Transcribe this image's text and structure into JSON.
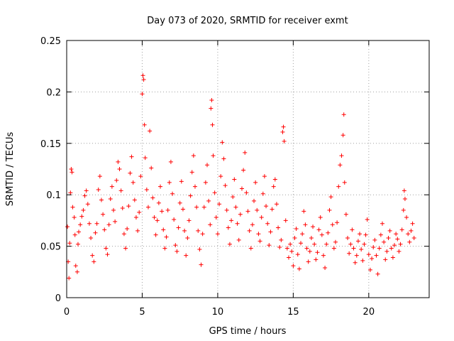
{
  "chart_data": {
    "type": "scatter",
    "title": "Day 073 of 2020, SRMTID for receiver exmt",
    "xlabel": "GPS time / hours",
    "ylabel": "SRMTID / TECUs",
    "xlim": [
      0,
      24
    ],
    "ylim": [
      0,
      0.25
    ],
    "xticks": [
      0,
      5,
      10,
      15,
      20
    ],
    "yticks": [
      0,
      0.05,
      0.1,
      0.15,
      0.2,
      0.25
    ],
    "xtick_labels": [
      "0",
      "5",
      "10",
      "15",
      "20"
    ],
    "ytick_labels": [
      "0",
      "0.05",
      "0.1",
      "0.15",
      "0.2",
      "0.25"
    ],
    "grid": true,
    "marker": "+",
    "series": [
      {
        "name": "SRMTID",
        "color": "#ff0000",
        "points": [
          [
            0.05,
            0.069
          ],
          [
            0.1,
            0.035
          ],
          [
            0.15,
            0.019
          ],
          [
            0.2,
            0.053
          ],
          [
            0.25,
            0.102
          ],
          [
            0.3,
            0.125
          ],
          [
            0.35,
            0.122
          ],
          [
            0.4,
            0.088
          ],
          [
            0.5,
            0.078
          ],
          [
            0.55,
            0.061
          ],
          [
            0.6,
            0.031
          ],
          [
            0.7,
            0.025
          ],
          [
            0.75,
            0.052
          ],
          [
            0.8,
            0.064
          ],
          [
            0.9,
            0.071
          ],
          [
            1.0,
            0.079
          ],
          [
            1.1,
            0.085
          ],
          [
            1.2,
            0.099
          ],
          [
            1.3,
            0.104
          ],
          [
            1.4,
            0.091
          ],
          [
            1.5,
            0.072
          ],
          [
            1.6,
            0.058
          ],
          [
            1.7,
            0.041
          ],
          [
            1.8,
            0.035
          ],
          [
            1.9,
            0.063
          ],
          [
            2.0,
            0.072
          ],
          [
            2.1,
            0.105
          ],
          [
            2.2,
            0.118
          ],
          [
            2.3,
            0.095
          ],
          [
            2.4,
            0.081
          ],
          [
            2.5,
            0.066
          ],
          [
            2.6,
            0.048
          ],
          [
            2.7,
            0.042
          ],
          [
            2.8,
            0.071
          ],
          [
            2.9,
            0.096
          ],
          [
            3.0,
            0.108
          ],
          [
            3.1,
            0.085
          ],
          [
            3.2,
            0.074
          ],
          [
            3.3,
            0.114
          ],
          [
            3.4,
            0.132
          ],
          [
            3.5,
            0.125
          ],
          [
            3.6,
            0.104
          ],
          [
            3.7,
            0.087
          ],
          [
            3.8,
            0.062
          ],
          [
            3.9,
            0.048
          ],
          [
            4.0,
            0.067
          ],
          [
            4.1,
            0.089
          ],
          [
            4.2,
            0.121
          ],
          [
            4.3,
            0.137
          ],
          [
            4.4,
            0.112
          ],
          [
            4.5,
            0.095
          ],
          [
            4.6,
            0.078
          ],
          [
            4.7,
            0.065
          ],
          [
            4.8,
            0.083
          ],
          [
            4.9,
            0.118
          ],
          [
            5.0,
            0.198
          ],
          [
            5.05,
            0.216
          ],
          [
            5.1,
            0.212
          ],
          [
            5.15,
            0.168
          ],
          [
            5.2,
            0.136
          ],
          [
            5.3,
            0.105
          ],
          [
            5.4,
            0.088
          ],
          [
            5.5,
            0.162
          ],
          [
            5.6,
            0.126
          ],
          [
            5.7,
            0.097
          ],
          [
            5.8,
            0.078
          ],
          [
            5.9,
            0.061
          ],
          [
            6.0,
            0.075
          ],
          [
            6.1,
            0.092
          ],
          [
            6.2,
            0.108
          ],
          [
            6.3,
            0.084
          ],
          [
            6.4,
            0.066
          ],
          [
            6.5,
            0.048
          ],
          [
            6.6,
            0.059
          ],
          [
            6.7,
            0.085
          ],
          [
            6.8,
            0.112
          ],
          [
            6.9,
            0.132
          ],
          [
            7.0,
            0.101
          ],
          [
            7.1,
            0.076
          ],
          [
            7.2,
            0.051
          ],
          [
            7.3,
            0.045
          ],
          [
            7.4,
            0.068
          ],
          [
            7.5,
            0.092
          ],
          [
            7.6,
            0.113
          ],
          [
            7.7,
            0.086
          ],
          [
            7.8,
            0.065
          ],
          [
            7.9,
            0.041
          ],
          [
            8.0,
            0.058
          ],
          [
            8.1,
            0.075
          ],
          [
            8.2,
            0.099
          ],
          [
            8.3,
            0.122
          ],
          [
            8.4,
            0.138
          ],
          [
            8.5,
            0.108
          ],
          [
            8.6,
            0.088
          ],
          [
            8.7,
            0.065
          ],
          [
            8.8,
            0.047
          ],
          [
            8.9,
            0.032
          ],
          [
            9.0,
            0.062
          ],
          [
            9.1,
            0.088
          ],
          [
            9.2,
            0.112
          ],
          [
            9.3,
            0.129
          ],
          [
            9.4,
            0.094
          ],
          [
            9.5,
            0.071
          ],
          [
            9.55,
            0.184
          ],
          [
            9.6,
            0.192
          ],
          [
            9.65,
            0.168
          ],
          [
            9.7,
            0.138
          ],
          [
            9.8,
            0.102
          ],
          [
            9.9,
            0.078
          ],
          [
            10.0,
            0.062
          ],
          [
            10.1,
            0.091
          ],
          [
            10.2,
            0.118
          ],
          [
            10.3,
            0.151
          ],
          [
            10.4,
            0.135
          ],
          [
            10.5,
            0.109
          ],
          [
            10.6,
            0.085
          ],
          [
            10.7,
            0.068
          ],
          [
            10.8,
            0.052
          ],
          [
            10.9,
            0.075
          ],
          [
            11.0,
            0.098
          ],
          [
            11.1,
            0.115
          ],
          [
            11.2,
            0.088
          ],
          [
            11.3,
            0.072
          ],
          [
            11.4,
            0.056
          ],
          [
            11.5,
            0.081
          ],
          [
            11.6,
            0.106
          ],
          [
            11.7,
            0.124
          ],
          [
            11.8,
            0.141
          ],
          [
            11.9,
            0.102
          ],
          [
            12.0,
            0.084
          ],
          [
            12.1,
            0.065
          ],
          [
            12.2,
            0.048
          ],
          [
            12.3,
            0.071
          ],
          [
            12.4,
            0.094
          ],
          [
            12.5,
            0.112
          ],
          [
            12.6,
            0.085
          ],
          [
            12.7,
            0.062
          ],
          [
            12.8,
            0.055
          ],
          [
            12.9,
            0.078
          ],
          [
            13.0,
            0.101
          ],
          [
            13.1,
            0.118
          ],
          [
            13.2,
            0.089
          ],
          [
            13.3,
            0.072
          ],
          [
            13.4,
            0.051
          ],
          [
            13.5,
            0.064
          ],
          [
            13.6,
            0.086
          ],
          [
            13.7,
            0.108
          ],
          [
            13.8,
            0.115
          ],
          [
            13.9,
            0.091
          ],
          [
            14.0,
            0.068
          ],
          [
            14.1,
            0.049
          ],
          [
            14.2,
            0.056
          ],
          [
            14.3,
            0.161
          ],
          [
            14.35,
            0.166
          ],
          [
            14.4,
            0.152
          ],
          [
            14.5,
            0.075
          ],
          [
            14.6,
            0.048
          ],
          [
            14.7,
            0.039
          ],
          [
            14.8,
            0.052
          ],
          [
            14.9,
            0.045
          ],
          [
            15.0,
            0.031
          ],
          [
            15.1,
            0.058
          ],
          [
            15.2,
            0.067
          ],
          [
            15.3,
            0.042
          ],
          [
            15.4,
            0.028
          ],
          [
            15.5,
            0.053
          ],
          [
            15.6,
            0.062
          ],
          [
            15.7,
            0.084
          ],
          [
            15.8,
            0.071
          ],
          [
            15.9,
            0.048
          ],
          [
            16.0,
            0.035
          ],
          [
            16.1,
            0.045
          ],
          [
            16.2,
            0.058
          ],
          [
            16.3,
            0.069
          ],
          [
            16.4,
            0.052
          ],
          [
            16.5,
            0.037
          ],
          [
            16.6,
            0.044
          ],
          [
            16.7,
            0.066
          ],
          [
            16.8,
            0.078
          ],
          [
            16.9,
            0.061
          ],
          [
            17.0,
            0.041
          ],
          [
            17.1,
            0.029
          ],
          [
            17.2,
            0.052
          ],
          [
            17.3,
            0.063
          ],
          [
            17.4,
            0.085
          ],
          [
            17.5,
            0.098
          ],
          [
            17.6,
            0.071
          ],
          [
            17.7,
            0.048
          ],
          [
            17.8,
            0.054
          ],
          [
            17.9,
            0.073
          ],
          [
            18.0,
            0.108
          ],
          [
            18.1,
            0.129
          ],
          [
            18.2,
            0.138
          ],
          [
            18.3,
            0.158
          ],
          [
            18.35,
            0.178
          ],
          [
            18.4,
            0.112
          ],
          [
            18.5,
            0.081
          ],
          [
            18.6,
            0.058
          ],
          [
            18.7,
            0.043
          ],
          [
            18.8,
            0.052
          ],
          [
            18.9,
            0.066
          ],
          [
            19.0,
            0.048
          ],
          [
            19.1,
            0.034
          ],
          [
            19.2,
            0.041
          ],
          [
            19.3,
            0.055
          ],
          [
            19.4,
            0.062
          ],
          [
            19.5,
            0.047
          ],
          [
            19.6,
            0.036
          ],
          [
            19.7,
            0.052
          ],
          [
            19.8,
            0.061
          ],
          [
            19.9,
            0.076
          ],
          [
            20.0,
            0.042
          ],
          [
            20.1,
            0.027
          ],
          [
            20.2,
            0.038
          ],
          [
            20.3,
            0.049
          ],
          [
            20.4,
            0.056
          ],
          [
            20.5,
            0.041
          ],
          [
            20.6,
            0.023
          ],
          [
            20.7,
            0.048
          ],
          [
            20.8,
            0.061
          ],
          [
            20.9,
            0.072
          ],
          [
            21.0,
            0.054
          ],
          [
            21.1,
            0.037
          ],
          [
            21.2,
            0.045
          ],
          [
            21.3,
            0.058
          ],
          [
            21.4,
            0.065
          ],
          [
            21.5,
            0.048
          ],
          [
            21.6,
            0.039
          ],
          [
            21.7,
            0.051
          ],
          [
            21.8,
            0.062
          ],
          [
            21.9,
            0.057
          ],
          [
            22.0,
            0.045
          ],
          [
            22.1,
            0.052
          ],
          [
            22.2,
            0.066
          ],
          [
            22.3,
            0.085
          ],
          [
            22.35,
            0.104
          ],
          [
            22.4,
            0.096
          ],
          [
            22.5,
            0.078
          ],
          [
            22.6,
            0.062
          ],
          [
            22.7,
            0.054
          ],
          [
            22.8,
            0.065
          ],
          [
            22.9,
            0.072
          ],
          [
            23.0,
            0.058
          ]
        ]
      }
    ]
  }
}
